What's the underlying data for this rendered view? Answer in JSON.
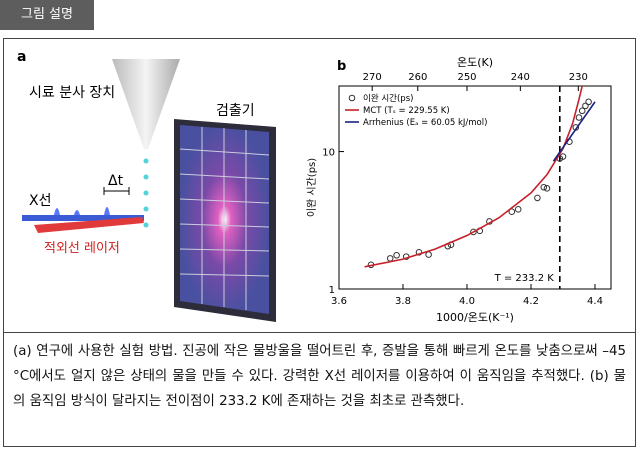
{
  "header": {
    "title": "그림 설명"
  },
  "panel_a": {
    "label": "a",
    "injector": "시료 분사 장치",
    "detector": "검출기",
    "xray": "X선",
    "delay": "Δt",
    "laser": "적외선 레이저"
  },
  "chart_data": {
    "type": "scatter",
    "panel_label": "b",
    "x2_label": "온도(K)",
    "x_label": "1000/온도(K⁻¹)",
    "y_label": "이완 시간(ps)",
    "xlim": [
      3.6,
      4.45
    ],
    "xticks": [
      3.6,
      3.8,
      {
        "value": 4.0,
        "label": "4.0"
      },
      4.2,
      4.4
    ],
    "x2ticks": [
      270,
      260,
      250,
      240,
      230
    ],
    "ylim": [
      1,
      30
    ],
    "yticks": [
      1,
      10
    ],
    "ylog": true,
    "legend": "upper left",
    "series": [
      {
        "name": "이완 시간(ps)",
        "style": "marker",
        "color": "#333333",
        "x": [
          3.7,
          3.76,
          3.78,
          3.81,
          3.85,
          3.88,
          3.94,
          3.95,
          4.02,
          4.04,
          4.07,
          4.14,
          4.16,
          4.22,
          4.24,
          4.25,
          4.29,
          4.3,
          4.32,
          4.34,
          4.35,
          4.36,
          4.37,
          4.38
        ],
        "values": [
          1.5,
          1.67,
          1.76,
          1.72,
          1.85,
          1.78,
          2.05,
          2.1,
          2.6,
          2.65,
          3.1,
          3.65,
          3.8,
          4.6,
          5.5,
          5.4,
          8.9,
          9.2,
          11.8,
          15,
          17.7,
          19.8,
          21.5,
          23
        ]
      },
      {
        "name": "MCT (Tₛ = 229.55 K)",
        "style": "line",
        "color": "#c8202a",
        "x": [
          3.68,
          3.8,
          3.9,
          4.0,
          4.1,
          4.2,
          4.25,
          4.3,
          4.33,
          4.35,
          4.36
        ],
        "values": [
          1.45,
          1.65,
          1.95,
          2.45,
          3.3,
          5.0,
          6.8,
          10.5,
          16,
          24,
          30
        ]
      },
      {
        "name": "Arrhenius (Eₐ = 60.05 kJ/mol)",
        "style": "line",
        "color": "#1a237e",
        "x": [
          4.27,
          4.4
        ],
        "values": [
          8.5,
          23
        ]
      }
    ],
    "vline": {
      "x": 4.29
    },
    "annotation": "T = 233.2 K"
  },
  "caption": "(a) 연구에 사용한 실험 방법. 진공에 작은 물방울을 떨어트린 후, 증발을 통해 빠르게 온도를 낮춤으로써 –45 °C에서도 얼지 않은 상태의 물을 만들 수 있다. 강력한 X선 레이저를 이용하여 이 움직임을 추적했다. (b) 물의 움직임 방식이 달라지는 전이점이 233.2 K에 존재하는 것을 최초로 관측했다."
}
